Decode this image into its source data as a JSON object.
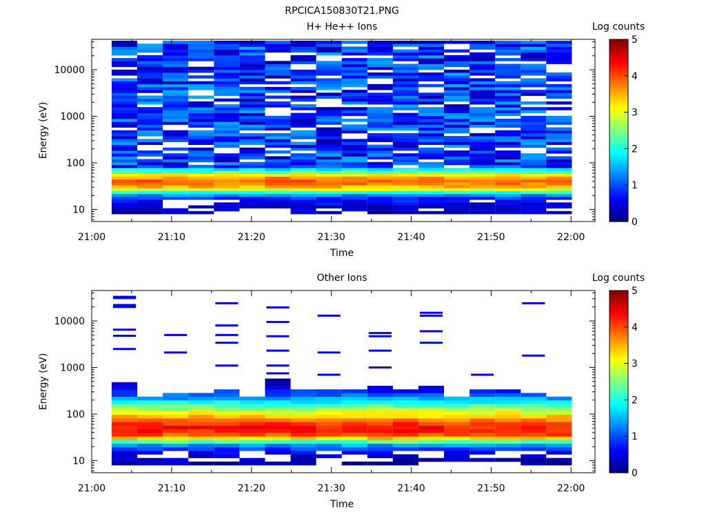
{
  "figure_title": "RPCICA150830T21.PNG",
  "chart_data": [
    {
      "type": "heatmap",
      "title": "H+ He++ Ions",
      "xlabel": "Time",
      "ylabel": "Energy (eV)",
      "y_scale": "log",
      "ylim": [
        5.5,
        45000
      ],
      "x_tick_labels": [
        "21:00",
        "21:10",
        "21:20",
        "21:30",
        "21:40",
        "21:50",
        "22:00"
      ],
      "y_tick_labels": [
        "10",
        "100",
        "1000",
        "10000"
      ],
      "colorbar": {
        "label": "Log counts",
        "range": [
          0,
          5
        ],
        "tick_labels": [
          "0",
          "1",
          "2",
          "3",
          "4",
          "5"
        ],
        "colormap": "jet"
      },
      "time_range_minutes": [
        0,
        63
      ],
      "columns_start_minutes": [
        2.5,
        5.7,
        8.9,
        12.1,
        15.3,
        18.5,
        21.7,
        24.9,
        28.1,
        31.3,
        34.5,
        37.7,
        40.9,
        44.1,
        47.3,
        50.5,
        53.7,
        56.9
      ],
      "column_width_minutes": 3.2,
      "low_energy_profile": {
        "energy_eV": [
          9,
          11,
          13,
          16,
          19,
          23,
          28,
          34,
          41,
          50,
          60,
          72
        ],
        "log_counts": [
          0.35,
          0.35,
          0.55,
          0.7,
          1.0,
          1.9,
          3.2,
          3.7,
          3.9,
          3.6,
          2.6,
          1.8
        ]
      },
      "background_log_counts_range": [
        0.2,
        1.5
      ]
    },
    {
      "type": "heatmap",
      "title": "Other Ions",
      "xlabel": "Time",
      "ylabel": "Energy (eV)",
      "y_scale": "log",
      "ylim": [
        5.5,
        45000
      ],
      "x_tick_labels": [
        "21:00",
        "21:10",
        "21:20",
        "21:30",
        "21:40",
        "21:50",
        "22:00"
      ],
      "y_tick_labels": [
        "10",
        "100",
        "1000",
        "10000"
      ],
      "colorbar": {
        "label": "Log counts",
        "range": [
          0,
          5
        ],
        "tick_labels": [
          "0",
          "1",
          "2",
          "3",
          "4",
          "5"
        ],
        "colormap": "jet"
      },
      "time_range_minutes": [
        0,
        63
      ],
      "columns_start_minutes": [
        2.5,
        5.7,
        8.9,
        12.1,
        15.3,
        18.5,
        21.7,
        24.9,
        28.1,
        31.3,
        34.5,
        37.7,
        40.9,
        44.1,
        47.3,
        50.5,
        53.7,
        56.9
      ],
      "column_width_minutes": 3.2,
      "energy_profile": {
        "energy_eV": [
          9,
          11,
          14,
          17,
          20,
          24,
          29,
          35,
          42,
          51,
          62,
          75,
          90,
          110,
          130,
          160,
          195,
          235,
          285,
          345,
          415,
          500
        ],
        "log_counts": [
          0.3,
          0.3,
          0.5,
          0.8,
          1.2,
          1.8,
          3.2,
          3.9,
          4.2,
          4.3,
          4.1,
          3.8,
          3.4,
          3.0,
          2.6,
          2.2,
          1.7,
          1.3,
          0.9,
          0.6,
          0.35,
          0.25
        ]
      },
      "column_upper_cutoff_eV": [
        520,
        230,
        280,
        260,
        330,
        240,
        540,
        360,
        350,
        340,
        380,
        320,
        400,
        250,
        340,
        360,
        300,
        230
      ],
      "sparse_high_energy_lines_eV": [
        [
          33000,
          31000,
          22000,
          20000,
          6500,
          4800,
          2500
        ],
        [],
        [
          5000,
          2100
        ],
        [],
        [
          24000,
          8000,
          5000,
          3400,
          1100
        ],
        [],
        [
          19500,
          9500,
          4700,
          2300,
          1100,
          750
        ],
        [],
        [
          13000,
          2100,
          700
        ],
        [],
        [
          5500,
          4700,
          2300,
          1000
        ],
        [],
        [
          15000,
          13000,
          6000,
          3400
        ],
        [],
        [
          700
        ],
        [],
        [
          24000,
          1800
        ],
        []
      ]
    }
  ]
}
